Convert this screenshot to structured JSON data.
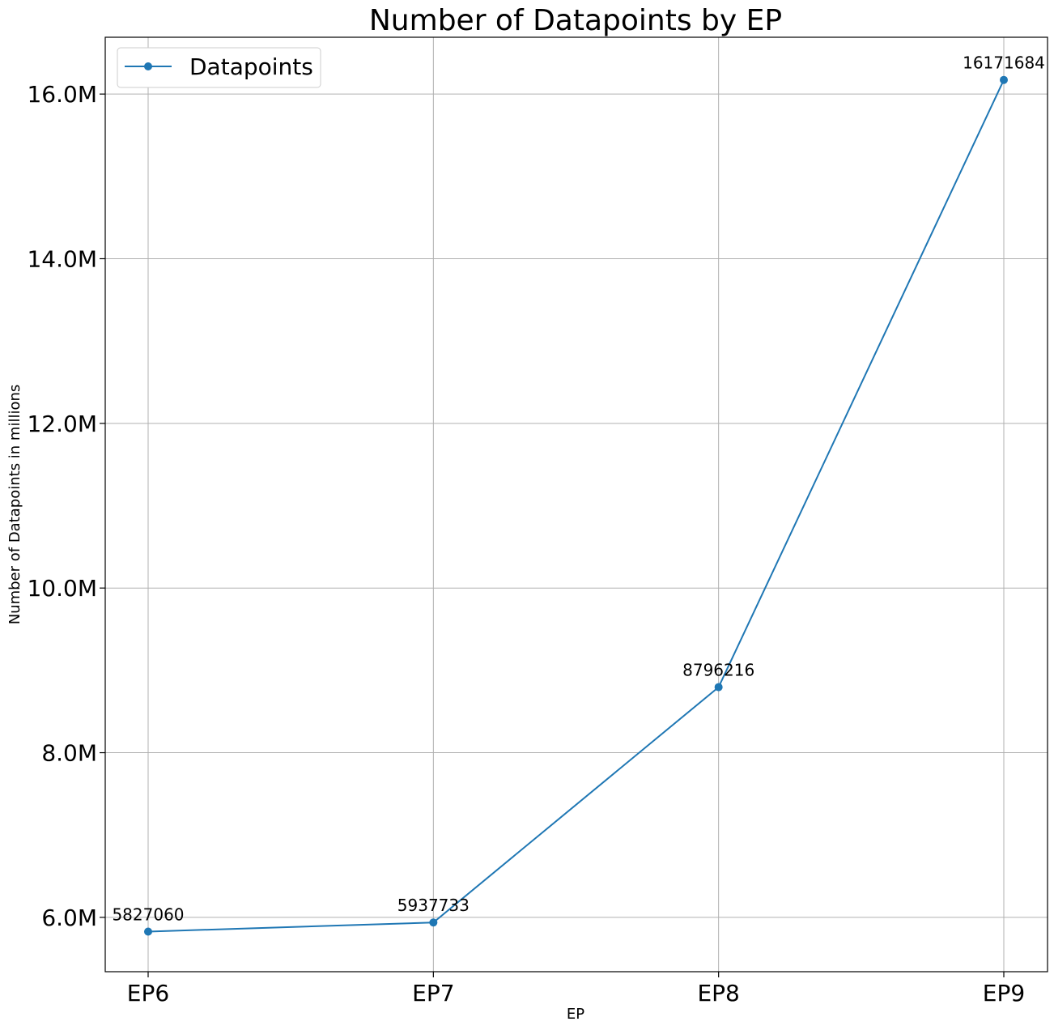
{
  "chart_data": {
    "type": "line",
    "title": "Number of Datapoints by EP",
    "xlabel": "EP",
    "ylabel": "Number of Datapoints in millions",
    "categories": [
      "EP6",
      "EP7",
      "EP8",
      "EP9"
    ],
    "series": [
      {
        "name": "Datapoints",
        "values": [
          5827060,
          5937733,
          8796216,
          16171684
        ],
        "color": "#1f77b4"
      }
    ],
    "data_labels": [
      "5827060",
      "5937733",
      "8796216",
      "16171684"
    ],
    "yticks": [
      6000000,
      8000000,
      10000000,
      12000000,
      14000000,
      16000000
    ],
    "ytick_labels": [
      "6.0M",
      "8.0M",
      "10.0M",
      "12.0M",
      "14.0M",
      "16.0M"
    ],
    "ylim": [
      5340000,
      16690000
    ],
    "grid": true,
    "legend_position": "upper-left"
  }
}
